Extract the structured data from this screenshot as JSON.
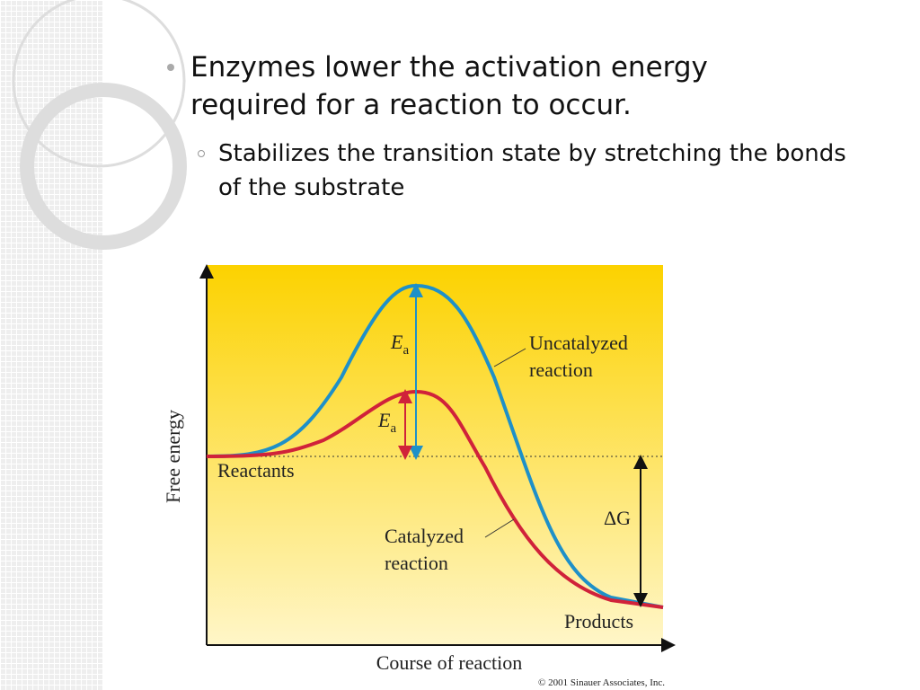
{
  "bullets": [
    {
      "text": "Enzymes lower the activation energy required for a reaction to occur.",
      "sub": [
        "Stabilizes the transition state by stretching the bonds of the substrate"
      ]
    }
  ],
  "figure": {
    "y_axis_label": "Free energy",
    "x_axis_label": "Course of reaction",
    "uncatalyzed_ea": {
      "main": "E",
      "sub": "a"
    },
    "catalyzed_ea": {
      "main": "E",
      "sub": "a"
    },
    "uncatalyzed_label": [
      "Uncatalyzed",
      "reaction"
    ],
    "catalyzed_label": [
      "Catalyzed",
      "reaction"
    ],
    "reactants": "Reactants",
    "products": "Products",
    "delta_g": "ΔG",
    "copyright": "© 2001 Sinauer Associates, Inc."
  }
}
